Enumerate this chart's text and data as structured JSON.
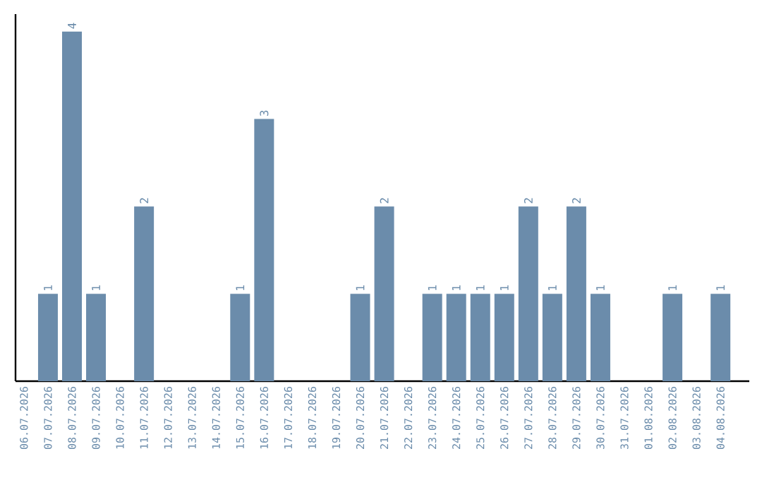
{
  "chart_data": {
    "type": "bar",
    "color": "#6b8cab",
    "categories": [
      "06.07.2026",
      "07.07.2026",
      "08.07.2026",
      "09.07.2026",
      "10.07.2026",
      "11.07.2026",
      "12.07.2026",
      "13.07.2026",
      "14.07.2026",
      "15.07.2026",
      "16.07.2026",
      "17.07.2026",
      "18.07.2026",
      "19.07.2026",
      "20.07.2026",
      "21.07.2026",
      "22.07.2026",
      "23.07.2026",
      "24.07.2026",
      "25.07.2026",
      "26.07.2026",
      "27.07.2026",
      "28.07.2026",
      "29.07.2026",
      "30.07.2026",
      "31.07.2026",
      "01.08.2026",
      "02.08.2026",
      "03.08.2026",
      "04.08.2026"
    ],
    "values": [
      0,
      1,
      4,
      1,
      0,
      2,
      0,
      0,
      0,
      1,
      3,
      0,
      0,
      0,
      1,
      2,
      0,
      1,
      1,
      1,
      1,
      2,
      1,
      2,
      1,
      0,
      0,
      1,
      0,
      1
    ],
    "value_labels": [
      null,
      "1",
      "4",
      "1",
      null,
      "2",
      null,
      null,
      null,
      "1",
      "3",
      null,
      null,
      null,
      "1",
      "2",
      null,
      "1",
      "1",
      "1",
      "1",
      "2",
      "1",
      "2",
      "1",
      null,
      null,
      "1",
      null,
      "1"
    ],
    "ylim": [
      0,
      4.2
    ],
    "tick_labels": "x"
  }
}
